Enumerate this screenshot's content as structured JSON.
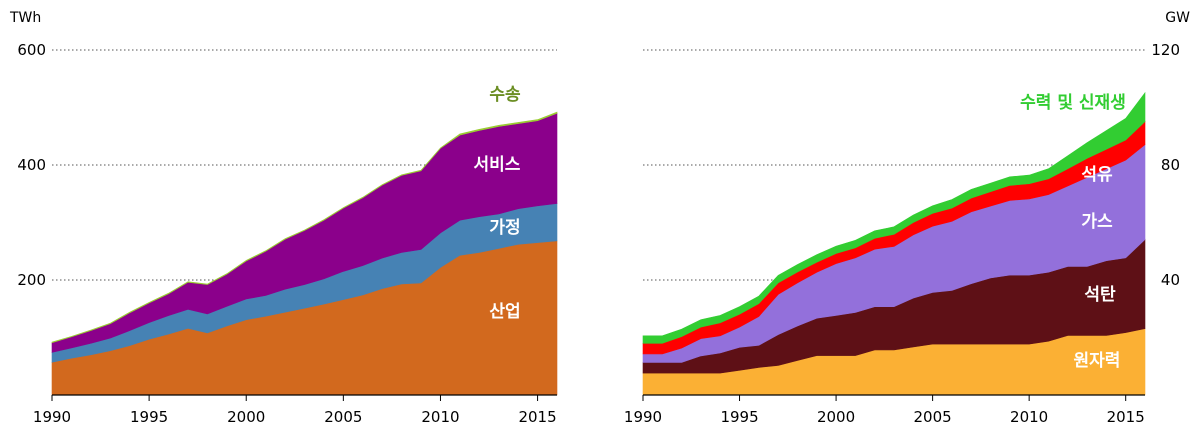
{
  "chart_data": [
    {
      "type": "area",
      "stacked": true,
      "y_unit": "TWh",
      "x": [
        1990,
        1991,
        1992,
        1993,
        1994,
        1995,
        1996,
        1997,
        1998,
        1999,
        2000,
        2001,
        2002,
        2003,
        2004,
        2005,
        2006,
        2007,
        2008,
        2009,
        2010,
        2011,
        2012,
        2013,
        2014,
        2015,
        2016
      ],
      "xticks": [
        "1990",
        "1995",
        "2000",
        "2005",
        "2010",
        "2015"
      ],
      "yticks": [
        "200",
        "400",
        "600"
      ],
      "ylim": [
        0,
        600
      ],
      "grid": "horizontal dotted",
      "series": [
        {
          "name": "산업",
          "color": "#D2691E",
          "values": [
            57,
            64,
            70,
            77,
            86,
            97,
            106,
            116,
            108,
            120,
            131,
            137,
            144,
            151,
            158,
            166,
            174,
            185,
            193,
            195,
            222,
            243,
            248,
            255,
            262,
            265,
            268
          ]
        },
        {
          "name": "가정",
          "color": "#4682B4",
          "values": [
            17,
            18,
            20,
            22,
            26,
            29,
            32,
            33,
            33,
            34,
            36,
            36,
            40,
            41,
            44,
            49,
            51,
            53,
            55,
            58,
            60,
            61,
            62,
            60,
            62,
            64,
            65
          ]
        },
        {
          "name": "서비스",
          "color": "#8B008B",
          "values": [
            17,
            19,
            22,
            25,
            31,
            34,
            38,
            47,
            51,
            56,
            66,
            77,
            87,
            94,
            102,
            110,
            118,
            127,
            134,
            137,
            147,
            148,
            150,
            152,
            148,
            148,
            157
          ]
        },
        {
          "name": "수송",
          "color": "#9ACD32",
          "values": [
            1,
            1,
            1,
            1,
            1,
            1,
            1,
            1,
            1,
            1,
            1,
            1,
            1,
            1,
            1,
            1,
            1,
            1,
            1,
            1,
            1,
            2,
            2,
            2,
            2,
            2,
            2
          ]
        }
      ]
    },
    {
      "type": "area",
      "stacked": true,
      "y_unit": "GW",
      "x": [
        1990,
        1991,
        1992,
        1993,
        1994,
        1995,
        1996,
        1997,
        1998,
        1999,
        2000,
        2001,
        2002,
        2003,
        2004,
        2005,
        2006,
        2007,
        2008,
        2009,
        2010,
        2011,
        2012,
        2013,
        2014,
        2015,
        2016
      ],
      "xticks": [
        "1990",
        "1995",
        "2000",
        "2005",
        "2010",
        "2015"
      ],
      "yticks": [
        "40",
        "80",
        "120"
      ],
      "ylim": [
        0,
        120
      ],
      "grid": "horizontal dotted",
      "series": [
        {
          "name": "원자력",
          "color": "#FBB034",
          "values": [
            7.6,
            7.6,
            7.6,
            7.6,
            7.6,
            8.6,
            9.6,
            10.3,
            12.0,
            13.7,
            13.7,
            13.7,
            15.7,
            15.7,
            16.7,
            17.7,
            17.7,
            17.7,
            17.7,
            17.7,
            17.7,
            18.7,
            20.7,
            20.7,
            20.7,
            21.7,
            23.1
          ]
        },
        {
          "name": "석탄",
          "color": "#5E1016",
          "values": [
            3.7,
            3.7,
            3.7,
            6.0,
            7.0,
            8.0,
            7.7,
            10.7,
            12.0,
            13.0,
            14.0,
            15.0,
            15.0,
            15.0,
            17.0,
            18.0,
            18.7,
            21.0,
            23.0,
            24.0,
            24.0,
            24.0,
            24.0,
            24.0,
            26.0,
            26.0,
            31.0
          ]
        },
        {
          "name": "가스",
          "color": "#9370DB",
          "values": [
            3.0,
            3.0,
            5.0,
            6.0,
            6.0,
            7.0,
            10.0,
            14.0,
            15.0,
            16.0,
            18.0,
            19.0,
            20.0,
            21.0,
            22.0,
            23.0,
            24.0,
            25.0,
            25.0,
            26.0,
            26.5,
            27.0,
            28.0,
            31.0,
            32.0,
            34.0,
            33.0
          ]
        },
        {
          "name": "석유",
          "color": "#FF0000",
          "values": [
            3.7,
            3.7,
            4.0,
            4.0,
            4.5,
            4.5,
            4.5,
            4.0,
            3.8,
            3.5,
            3.5,
            3.5,
            3.8,
            4.2,
            4.3,
            4.5,
            4.6,
            4.8,
            5.0,
            5.2,
            5.3,
            5.5,
            6.0,
            6.6,
            6.8,
            7.0,
            8.0
          ]
        },
        {
          "name": "수력 및 신재생",
          "color": "#32CD32",
          "values": [
            2.6,
            2.6,
            2.6,
            2.6,
            2.6,
            2.6,
            2.6,
            2.6,
            2.6,
            2.6,
            2.6,
            2.6,
            2.6,
            2.6,
            2.6,
            2.6,
            3.0,
            3.0,
            3.0,
            3.0,
            3.0,
            3.5,
            4.5,
            5.5,
            6.5,
            7.5,
            10.0
          ]
        }
      ]
    }
  ]
}
